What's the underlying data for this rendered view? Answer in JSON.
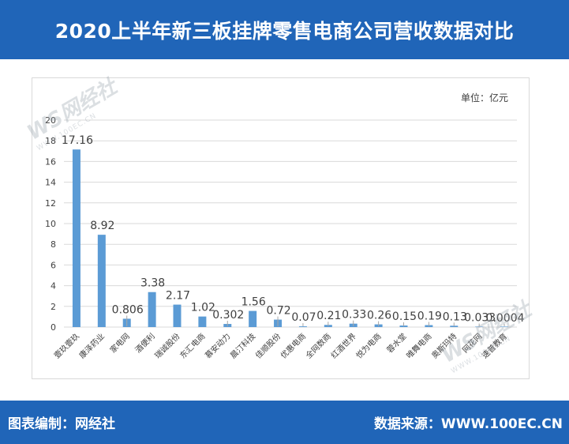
{
  "header": {
    "title": "2020上半年新三板挂牌零售电商公司营收数据对比"
  },
  "footer": {
    "editor": "图表编制：网经社",
    "source": "数据来源：WWW.100EC.CN"
  },
  "watermark": {
    "logo": "WS网经社",
    "url": "WWW.100EC.CN"
  },
  "colors": {
    "bar": "#5b9bd5",
    "brand": "#2065b8",
    "grid": "#d9d9d9"
  },
  "chart_data": {
    "type": "bar",
    "unit_label": "单位：亿元",
    "categories": [
      "壹玖壹玖",
      "康泽药业",
      "家电网",
      "酒便利",
      "瑞诚股份",
      "东汇电商",
      "慕安动力",
      "晨汀科技",
      "佳顺股份",
      "优惠电商",
      "全网数商",
      "红酒世界",
      "悦为电商",
      "蓉水堂",
      "唯舞电商",
      "奥斯玛特",
      "网花网",
      "速普教育"
    ],
    "values": [
      17.16,
      8.92,
      0.806,
      3.38,
      2.17,
      1.02,
      0.302,
      1.56,
      0.72,
      0.07,
      0.21,
      0.33,
      0.26,
      0.15,
      0.19,
      0.13,
      0.033,
      0.0004
    ],
    "labels": [
      "17.16",
      "8.92",
      "0.806",
      "3.38",
      "2.17",
      "1.02",
      "0.302",
      "1.56",
      "0.72",
      "0.07",
      "0.21",
      "0.33",
      "0.26",
      "0.15",
      "0.19",
      "0.13",
      "0.033",
      "0.0004"
    ],
    "ylim": [
      0,
      20
    ],
    "yticks": [
      0,
      2,
      4,
      6,
      8,
      10,
      12,
      14,
      16,
      18,
      20
    ],
    "grid": true,
    "legend": false
  }
}
